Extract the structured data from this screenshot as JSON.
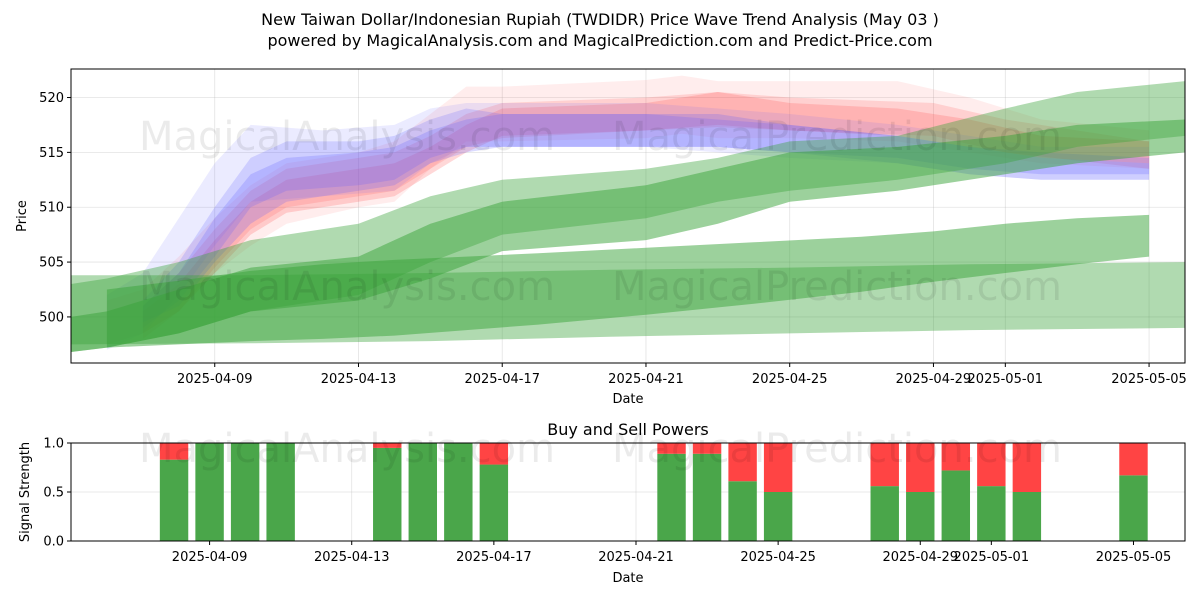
{
  "header": {
    "title_line1": "New Taiwan Dollar/Indonesian Rupiah (TWDIDR) Price Wave Trend Analysis (May 03 )",
    "title_line2": "powered by MagicalAnalysis.com and MagicalPrediction.com and Predict-Price.com"
  },
  "watermarks": {
    "left": "MagicalAnalysis.com",
    "right": "MagicalPrediction.com"
  },
  "colors": {
    "red_band": "#ff4d4d",
    "blue_band": "#5a5aff",
    "green_band": "#3aa33a",
    "buy_bar": "#4aa64a",
    "sell_bar": "#ff4444"
  },
  "chart_data": [
    {
      "type": "area",
      "title": "",
      "xlabel": "Date",
      "ylabel": "Price",
      "x_range": [
        "2025-04-05",
        "2025-05-06"
      ],
      "ylim": [
        495.8,
        522.6
      ],
      "x_ticks": [
        "2025-04-09",
        "2025-04-13",
        "2025-04-17",
        "2025-04-21",
        "2025-04-25",
        "2025-04-29",
        "2025-05-01",
        "2025-05-05"
      ],
      "y_ticks": [
        500,
        505,
        510,
        515,
        520
      ],
      "grid": true,
      "series": [
        {
          "color": "red",
          "opacity": 0.1,
          "x": [
            "2025-04-06",
            "2025-04-07",
            "2025-04-08",
            "2025-04-09",
            "2025-04-10",
            "2025-04-11",
            "2025-04-13",
            "2025-04-14",
            "2025-04-15",
            "2025-04-16",
            "2025-04-17",
            "2025-04-21",
            "2025-04-22",
            "2025-04-23",
            "2025-04-25",
            "2025-04-28",
            "2025-04-30",
            "2025-05-02",
            "2025-05-05"
          ],
          "upper": [
            501.5,
            502.5,
            505.5,
            509,
            512,
            514,
            515,
            516,
            518.5,
            521,
            521,
            521.6,
            522,
            521.5,
            521.5,
            521.5,
            520,
            518,
            517
          ],
          "lower": [
            497.5,
            498.5,
            500.5,
            504,
            506.5,
            508.5,
            510,
            510.5,
            513.5,
            516,
            516,
            516.3,
            516.7,
            516.3,
            516.3,
            516,
            515,
            514,
            513.5
          ]
        },
        {
          "color": "red",
          "opacity": 0.18,
          "x": [
            "2025-04-07",
            "2025-04-08",
            "2025-04-09",
            "2025-04-10",
            "2025-04-11",
            "2025-04-13",
            "2025-04-14",
            "2025-04-15",
            "2025-04-16",
            "2025-04-17",
            "2025-04-21",
            "2025-04-23",
            "2025-04-25",
            "2025-04-29",
            "2025-05-01",
            "2025-05-05"
          ],
          "upper": [
            501,
            504,
            508,
            511.5,
            513.5,
            514.5,
            515,
            516.5,
            518.5,
            519.5,
            520,
            520.5,
            520,
            519.5,
            518,
            516
          ],
          "lower": [
            498,
            500.5,
            504.5,
            508,
            510,
            511,
            511.5,
            513.5,
            515.5,
            516.3,
            517,
            517.3,
            517,
            516.5,
            515,
            513.5
          ]
        },
        {
          "color": "red",
          "opacity": 0.22,
          "x": [
            "2025-04-07",
            "2025-04-08",
            "2025-04-09",
            "2025-04-10",
            "2025-04-11",
            "2025-04-13",
            "2025-04-14",
            "2025-04-15",
            "2025-04-16",
            "2025-04-17",
            "2025-04-21",
            "2025-04-23",
            "2025-04-25",
            "2025-04-28",
            "2025-04-30",
            "2025-05-02",
            "2025-05-05"
          ],
          "upper": [
            500.5,
            503,
            507,
            510.5,
            512.5,
            513.5,
            514,
            515.5,
            517.5,
            519,
            519.5,
            520.5,
            519.5,
            519,
            518,
            516.5,
            516
          ],
          "lower": [
            498.5,
            500.5,
            504,
            507.5,
            509.5,
            510.5,
            511,
            513,
            515,
            516.5,
            517,
            517.5,
            517,
            516.5,
            515.5,
            514.5,
            514
          ]
        },
        {
          "color": "blue",
          "opacity": 0.12,
          "x": [
            "2025-04-06",
            "2025-04-07",
            "2025-04-08",
            "2025-04-09",
            "2025-04-10",
            "2025-04-12",
            "2025-04-14",
            "2025-04-15",
            "2025-04-16",
            "2025-04-17",
            "2025-04-21",
            "2025-04-23",
            "2025-04-25",
            "2025-04-28",
            "2025-04-30",
            "2025-05-02",
            "2025-05-05"
          ],
          "upper": [
            502,
            504,
            509,
            514,
            517.5,
            517,
            517.5,
            519,
            519.5,
            519.5,
            519.5,
            519,
            518.5,
            517.5,
            516.5,
            515.5,
            515.5
          ],
          "lower": [
            497,
            498.5,
            502,
            506.5,
            510.5,
            511,
            511.5,
            514,
            515.5,
            515.5,
            515.5,
            515,
            514.5,
            514,
            513,
            512.5,
            512.5
          ]
        },
        {
          "color": "blue",
          "opacity": 0.2,
          "x": [
            "2025-04-07",
            "2025-04-08",
            "2025-04-09",
            "2025-04-10",
            "2025-04-11",
            "2025-04-13",
            "2025-04-14",
            "2025-04-15",
            "2025-04-16",
            "2025-04-17",
            "2025-04-21",
            "2025-04-23",
            "2025-04-25",
            "2025-04-28",
            "2025-04-30",
            "2025-05-02",
            "2025-05-05"
          ],
          "upper": [
            501.5,
            505,
            510,
            514.5,
            516,
            516,
            516.5,
            518,
            519,
            518.5,
            518.5,
            518,
            517.5,
            516.5,
            515.5,
            514.5,
            514
          ],
          "lower": [
            499,
            501.5,
            505.5,
            510,
            511.5,
            512,
            512.5,
            514.5,
            515.5,
            515.5,
            515.5,
            515.5,
            515,
            514,
            513,
            512.5,
            512.5
          ]
        },
        {
          "color": "blue",
          "opacity": 0.22,
          "x": [
            "2025-04-07",
            "2025-04-08",
            "2025-04-09",
            "2025-04-10",
            "2025-04-11",
            "2025-04-13",
            "2025-04-14",
            "2025-04-15",
            "2025-04-16",
            "2025-04-17",
            "2025-04-21",
            "2025-04-23",
            "2025-04-25",
            "2025-04-28",
            "2025-04-30",
            "2025-05-02",
            "2025-05-05"
          ],
          "upper": [
            501,
            504,
            509,
            513,
            514.5,
            515,
            515.5,
            517,
            518,
            518.5,
            518.5,
            518.5,
            517.5,
            516.5,
            515.5,
            515,
            514.5
          ],
          "lower": [
            499.5,
            501,
            505,
            508.5,
            510.5,
            511.5,
            512,
            514,
            515,
            515.5,
            515.5,
            515.5,
            515,
            514.5,
            513.5,
            513,
            513
          ]
        },
        {
          "color": "green",
          "opacity": 0.4,
          "x": [
            "2025-04-05",
            "2025-04-06",
            "2025-04-08",
            "2025-04-10",
            "2025-04-13",
            "2025-04-15",
            "2025-04-17",
            "2025-04-21",
            "2025-04-23",
            "2025-04-25",
            "2025-04-28",
            "2025-05-01",
            "2025-05-03",
            "2025-05-06"
          ],
          "upper": [
            503,
            503.5,
            505,
            507,
            508.5,
            511,
            512.5,
            513.5,
            514.5,
            516,
            516.5,
            519,
            520.5,
            521.5
          ],
          "lower": [
            496.8,
            497.2,
            498.5,
            500.5,
            502,
            505,
            507.5,
            509,
            510.5,
            511.5,
            512.5,
            514,
            515.5,
            516.5
          ]
        },
        {
          "color": "green",
          "opacity": 0.5,
          "x": [
            "2025-04-05",
            "2025-04-06",
            "2025-04-08",
            "2025-04-10",
            "2025-04-13",
            "2025-04-15",
            "2025-04-17",
            "2025-04-21",
            "2025-04-23",
            "2025-04-25",
            "2025-04-28",
            "2025-05-01",
            "2025-05-03",
            "2025-05-06"
          ],
          "upper": [
            500,
            500.5,
            502.5,
            504.5,
            505.5,
            508.5,
            510.5,
            512,
            513.5,
            515,
            515.5,
            516.5,
            517.5,
            518
          ],
          "lower": [
            496.8,
            497.2,
            498.5,
            500.5,
            501.5,
            503.5,
            506,
            507,
            508.5,
            510.5,
            511.5,
            513,
            514,
            515
          ]
        },
        {
          "color": "green",
          "opacity": 0.4,
          "x": [
            "2025-04-05",
            "2025-04-10",
            "2025-04-15",
            "2025-04-20",
            "2025-04-25",
            "2025-04-30",
            "2025-05-06"
          ],
          "upper": [
            503.8,
            503.8,
            504,
            504.3,
            504.5,
            504.8,
            505
          ],
          "lower": [
            497.5,
            497.6,
            497.8,
            498.2,
            498.5,
            498.8,
            499
          ]
        },
        {
          "color": "green",
          "opacity": 0.5,
          "x": [
            "2025-04-06",
            "2025-04-08",
            "2025-04-10",
            "2025-04-12",
            "2025-04-14",
            "2025-04-16",
            "2025-04-18",
            "2025-04-21",
            "2025-04-24",
            "2025-04-27",
            "2025-04-29",
            "2025-05-01",
            "2025-05-03",
            "2025-05-05"
          ],
          "upper": [
            502.5,
            503.3,
            504.2,
            504.8,
            505.2,
            505.5,
            505.8,
            506.3,
            506.8,
            507.3,
            507.8,
            508.5,
            509,
            509.3
          ],
          "lower": [
            497.2,
            497.5,
            497.8,
            498,
            498.3,
            498.8,
            499.3,
            500.2,
            501.2,
            502.3,
            503.2,
            504,
            504.8,
            505.5
          ]
        }
      ]
    },
    {
      "type": "bar",
      "title": "Buy and Sell Powers",
      "xlabel": "Date",
      "ylabel": "Signal Strength",
      "ylim": [
        0,
        1
      ],
      "y_ticks": [
        "0.0",
        "0.5",
        "1.0"
      ],
      "x_ticks": [
        "2025-04-09",
        "2025-04-13",
        "2025-04-17",
        "2025-04-21",
        "2025-04-25",
        "2025-04-29",
        "2025-05-01",
        "2025-05-05"
      ],
      "grid": true,
      "categories": [
        "2025-04-08",
        "2025-04-09",
        "2025-04-10",
        "2025-04-11",
        "2025-04-14",
        "2025-04-15",
        "2025-04-16",
        "2025-04-17",
        "2025-04-22",
        "2025-04-23",
        "2025-04-24",
        "2025-04-25",
        "2025-04-28",
        "2025-04-29",
        "2025-04-30",
        "2025-05-01",
        "2025-05-02",
        "2025-05-05"
      ],
      "series": [
        {
          "name": "Buy",
          "values": [
            0.83,
            1.0,
            1.0,
            1.0,
            0.95,
            1.0,
            1.0,
            0.78,
            0.89,
            0.89,
            0.61,
            0.5,
            0.56,
            0.5,
            0.72,
            0.56,
            0.5,
            0.67
          ]
        },
        {
          "name": "Sell",
          "values": [
            0.17,
            0.0,
            0.0,
            0.0,
            0.05,
            0.0,
            0.0,
            0.22,
            0.11,
            0.11,
            0.39,
            0.5,
            0.44,
            0.5,
            0.28,
            0.44,
            0.5,
            0.33
          ]
        }
      ]
    }
  ]
}
